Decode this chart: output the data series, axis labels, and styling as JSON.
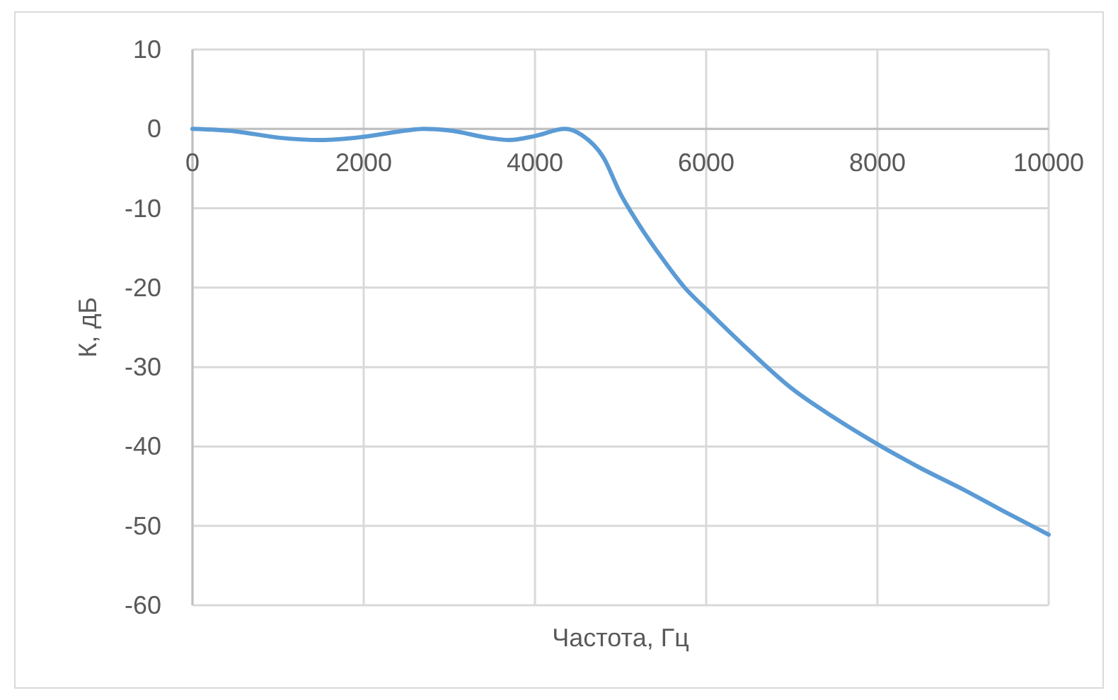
{
  "chart_data": {
    "type": "line",
    "xlabel": "Частота, Гц",
    "ylabel": "К, дБ",
    "xlim": [
      0,
      10000
    ],
    "xticks": [
      0,
      2000,
      4000,
      6000,
      8000,
      10000
    ],
    "ylim": [
      -60,
      10
    ],
    "yticks": [
      -60,
      -50,
      -40,
      -30,
      -20,
      -10,
      0,
      10
    ],
    "grid": true,
    "marker": "none",
    "line_style": "solid",
    "series": [
      {
        "color": "#5b9bd5",
        "x": [
          0,
          500,
          1000,
          1500,
          2000,
          2500,
          2700,
          3000,
          3500,
          3700,
          4000,
          4350,
          4550,
          4800,
          5000,
          5200,
          5500,
          5750,
          6000,
          6500,
          7000,
          7500,
          8000,
          8500,
          9000,
          9500,
          10000
        ],
        "values": [
          0,
          -0.3,
          -1.1,
          -1.4,
          -1.0,
          -0.2,
          0,
          -0.2,
          -1.2,
          -1.4,
          -0.9,
          0,
          -0.8,
          -3.6,
          -8.2,
          -11.8,
          -16.5,
          -20,
          -22.7,
          -27.9,
          -32.7,
          -36.4,
          -39.7,
          -42.7,
          -45.4,
          -48.3,
          -51.1
        ]
      }
    ]
  }
}
